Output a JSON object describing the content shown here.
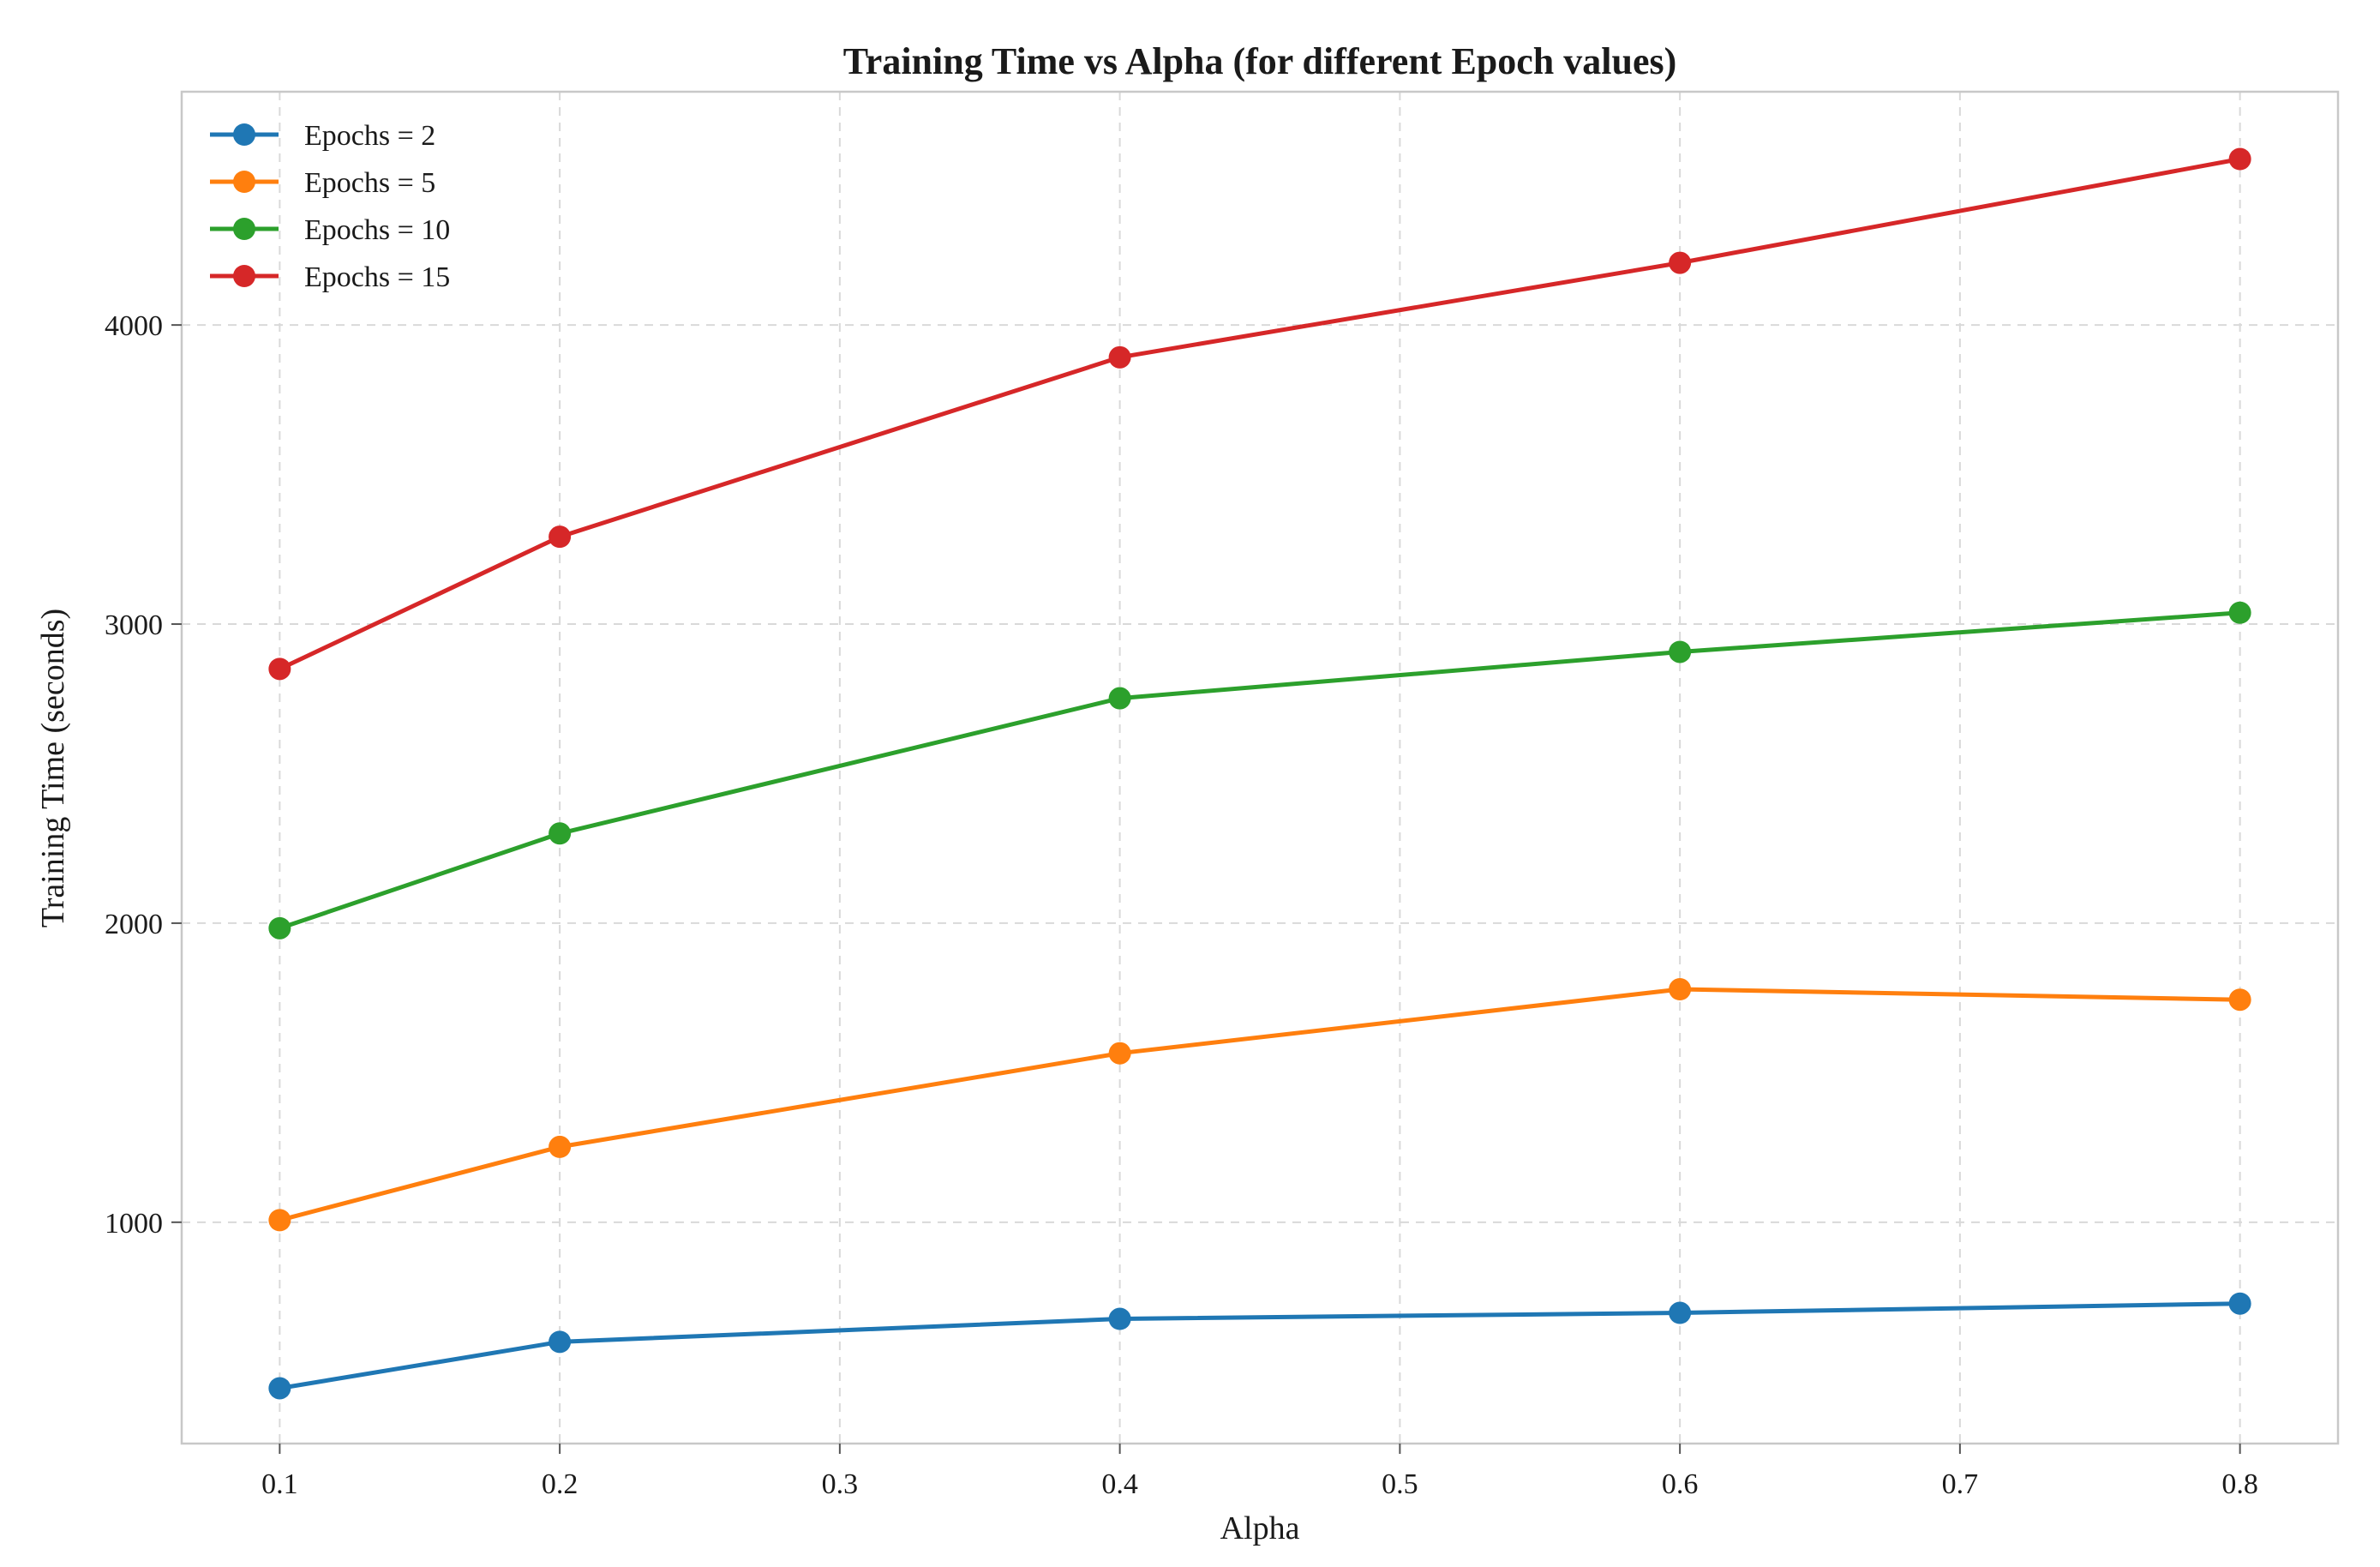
{
  "chart_data": {
    "type": "line",
    "title": "Training Time vs Alpha (for different Epoch values)",
    "xlabel": "Alpha",
    "ylabel": "Training Time (seconds)",
    "x": [
      0.1,
      0.2,
      0.4,
      0.6,
      0.8
    ],
    "xlim": [
      0.065,
      0.835
    ],
    "ylim": [
      260,
      4780
    ],
    "xticks": [
      0.1,
      0.2,
      0.3,
      0.4,
      0.5,
      0.6,
      0.7,
      0.8
    ],
    "xtick_labels": [
      "0.1",
      "0.2",
      "0.3",
      "0.4",
      "0.5",
      "0.6",
      "0.7",
      "0.8"
    ],
    "yticks": [
      1000,
      2000,
      3000,
      4000
    ],
    "ytick_labels": [
      "1000",
      "2000",
      "3000",
      "4000"
    ],
    "grid": true,
    "legend_position": "top-left",
    "series": [
      {
        "name": "Epochs = 2",
        "color": "#1f77b4",
        "values": [
          445,
          600,
          677,
          697,
          728
        ]
      },
      {
        "name": "Epochs = 5",
        "color": "#ff7f0e",
        "values": [
          1007,
          1252,
          1565,
          1779,
          1744
        ]
      },
      {
        "name": "Epochs = 10",
        "color": "#2ca02c",
        "values": [
          1983,
          2300,
          2752,
          2907,
          3038
        ]
      },
      {
        "name": "Epochs = 15",
        "color": "#d62728",
        "values": [
          2850,
          3292,
          3892,
          4208,
          4555
        ]
      }
    ]
  }
}
